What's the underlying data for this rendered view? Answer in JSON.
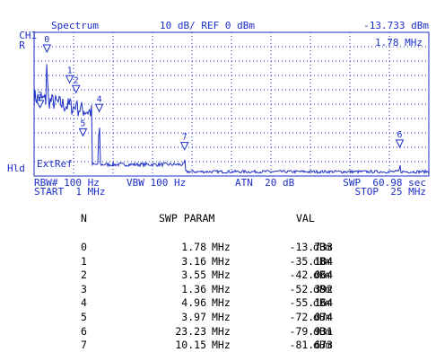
{
  "colors": {
    "screen": "#1c2fc8",
    "text": "#000000",
    "background": "#ffffff"
  },
  "header": {
    "channel": "CH1",
    "mode_flag": "R",
    "view": "Spectrum",
    "scale_ref": "10 dB/ REF 0 dBm",
    "marker_readout": "-13.733 dBm",
    "marker_freq": "1.78 MHz"
  },
  "side": {
    "hld": "Hld",
    "extref": "ExtRef"
  },
  "footer": {
    "rbw": "RBW# 100 Hz",
    "vbw": "VBW 100 Hz",
    "atn": "ATN  20 dB",
    "swp": "SWP  60.98 sec",
    "start": "START  1 MHz",
    "stop": "STOP  25 MHz"
  },
  "table": {
    "headers": {
      "n": "N",
      "param": "SWP PARAM",
      "val": "VAL"
    },
    "rows": [
      {
        "n": "0",
        "freq": "1.78",
        "unit": "MHz",
        "val": "-13.733",
        "vunit": "dBm"
      },
      {
        "n": "1",
        "freq": "3.16",
        "unit": "MHz",
        "val": "-35.184",
        "vunit": "dBm"
      },
      {
        "n": "2",
        "freq": "3.55",
        "unit": "MHz",
        "val": "-42.064",
        "vunit": "dBm"
      },
      {
        "n": "3",
        "freq": "1.36",
        "unit": "MHz",
        "val": "-52.392",
        "vunit": "dBm"
      },
      {
        "n": "4",
        "freq": "4.96",
        "unit": "MHz",
        "val": "-55.164",
        "vunit": "dBm"
      },
      {
        "n": "5",
        "freq": "3.97",
        "unit": "MHz",
        "val": "-72.074",
        "vunit": "dBm"
      },
      {
        "n": "6",
        "freq": "23.23",
        "unit": "MHz",
        "val": "-79.931",
        "vunit": "dBm"
      },
      {
        "n": "7",
        "freq": "10.15",
        "unit": "MHz",
        "val": "-81.673",
        "vunit": "dBm"
      }
    ]
  },
  "chart_data": {
    "type": "line",
    "xlim": [
      1,
      25
    ],
    "ylim": [
      -100,
      0
    ],
    "grid": true,
    "markers": [
      {
        "n": "0",
        "x": 1.78,
        "y": -13.733
      },
      {
        "n": "1",
        "x": 3.16,
        "y": -35.184
      },
      {
        "n": "2",
        "x": 3.55,
        "y": -42.064
      },
      {
        "n": "3",
        "x": 1.36,
        "y": -52.392
      },
      {
        "n": "4",
        "x": 4.96,
        "y": -55.164
      },
      {
        "n": "5",
        "x": 3.97,
        "y": -72.074
      },
      {
        "n": "6",
        "x": 23.23,
        "y": -79.931
      },
      {
        "n": "7",
        "x": 10.15,
        "y": -81.673
      }
    ]
  }
}
